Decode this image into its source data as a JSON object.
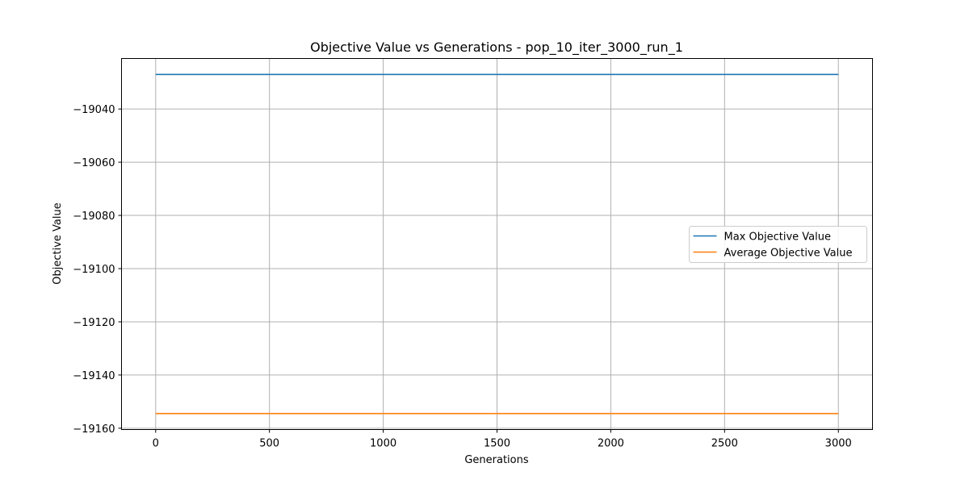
{
  "chart_data": {
    "type": "line",
    "title": "Objective Value vs Generations - pop_10_iter_3000_run_1",
    "xlabel": "Generations",
    "ylabel": "Objective Value",
    "xlim": [
      -150,
      3150
    ],
    "ylim": [
      -19160.5,
      -19021
    ],
    "xticks": [
      0,
      500,
      1000,
      1500,
      2000,
      2500,
      3000
    ],
    "yticks": [
      -19040,
      -19060,
      -19080,
      -19100,
      -19120,
      -19140,
      -19160
    ],
    "xtick_labels": [
      "0",
      "500",
      "1000",
      "1500",
      "2000",
      "2500",
      "3000"
    ],
    "ytick_labels": [
      "−19040",
      "−19060",
      "−19080",
      "−19100",
      "−19120",
      "−19140",
      "−19160"
    ],
    "grid": true,
    "legend_position": "center-right",
    "series": [
      {
        "name": "Max Objective Value",
        "color": "#1f77b4",
        "x": [
          0,
          3000
        ],
        "y": [
          -19027,
          -19027
        ]
      },
      {
        "name": "Average Objective Value",
        "color": "#ff7f0e",
        "x": [
          0,
          3000
        ],
        "y": [
          -19154.5,
          -19154.5
        ]
      }
    ]
  }
}
